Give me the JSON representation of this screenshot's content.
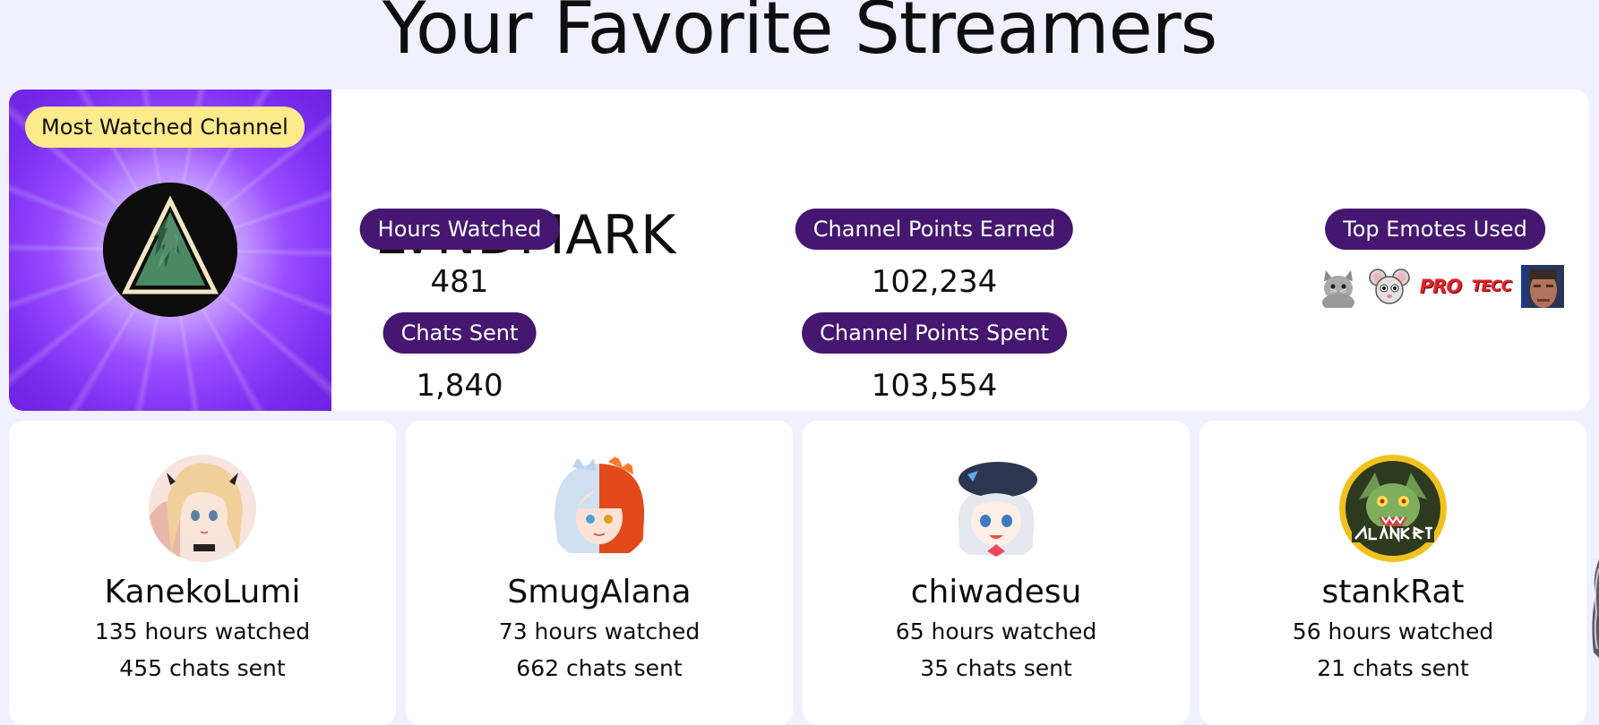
{
  "page": {
    "title": "Your Favorite Streamers"
  },
  "featured": {
    "badge": "Most Watched Channel",
    "channel_name": "LVNDMARK",
    "stats": {
      "hours_watched_label": "Hours Watched",
      "hours_watched_value": "481",
      "chats_sent_label": "Chats Sent",
      "chats_sent_value": "1,840",
      "points_earned_label": "Channel Points Earned",
      "points_earned_value": "102,234",
      "points_spent_label": "Channel Points Spent",
      "points_spent_value": "103,554",
      "top_emotes_label": "Top Emotes Used"
    },
    "emotes": [
      {
        "icon": "cat-emote-icon"
      },
      {
        "icon": "rat-emote-icon"
      },
      {
        "icon": "pro-text-emote",
        "text": "PRO"
      },
      {
        "icon": "tecc-text-emote",
        "text": "TECC"
      },
      {
        "icon": "face-emote-icon"
      }
    ],
    "colors": {
      "badge_bg": "#fdea8b",
      "pill_bg": "#451770",
      "banner_purple": "#7a2cf0"
    }
  },
  "streamers": [
    {
      "name": "KanekoLumi",
      "hours": "135 hours watched",
      "chats": "455 chats sent",
      "avatar_icon": "kanekolumi-avatar"
    },
    {
      "name": "SmugAlana",
      "hours": "73 hours watched",
      "chats": "662 chats sent",
      "avatar_icon": "smugalana-avatar"
    },
    {
      "name": "chiwadesu",
      "hours": "65 hours watched",
      "chats": "35 chats sent",
      "avatar_icon": "chiwadesu-avatar"
    },
    {
      "name": "stankRat",
      "hours": "56 hours watched",
      "chats": "21 chats sent",
      "avatar_icon": "stankrat-avatar"
    }
  ]
}
